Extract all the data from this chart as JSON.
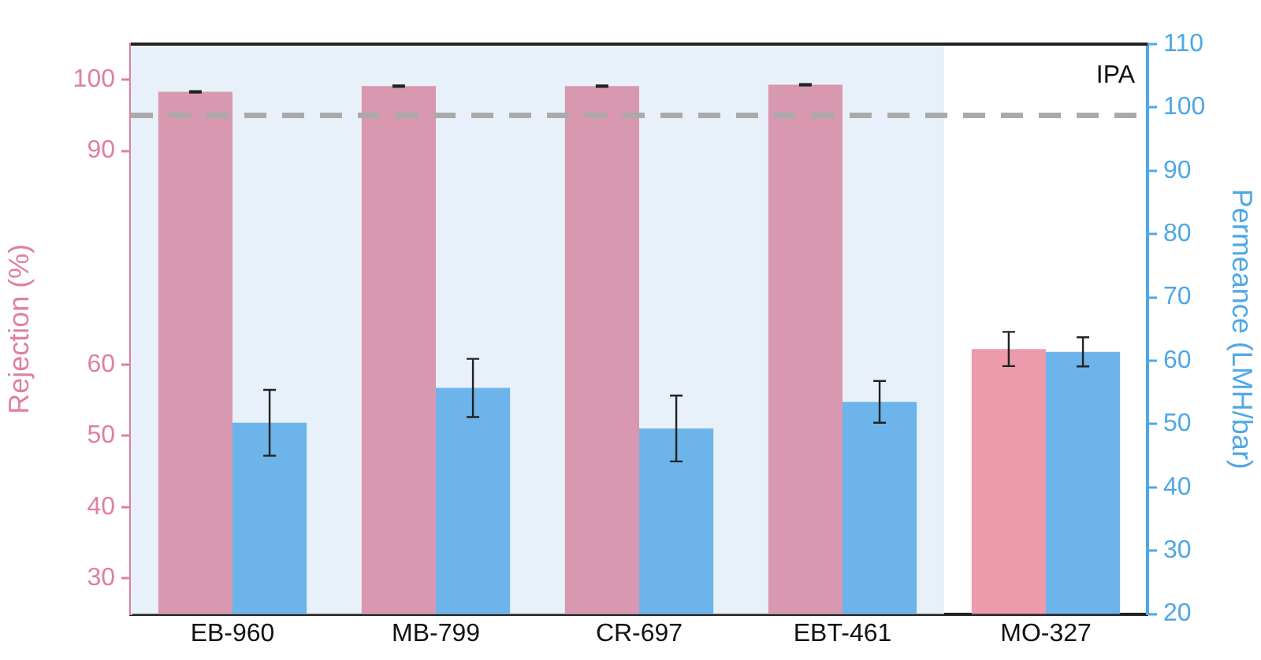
{
  "chart_data": {
    "type": "bar",
    "categories": [
      "EB-960",
      "MB-799",
      "CR-697",
      "EBT-461",
      "MO-327"
    ],
    "ylabel": "Rejection (%)",
    "y2label": "Permeance (LMH/bar)",
    "series": [
      {
        "color": "#e0809f",
        "colors": [
          "#d898b0",
          "#d898b0",
          "#d898b0",
          "#d898b0",
          "#ec9aac"
        ],
        "values": [
          98.3,
          99.1,
          99.1,
          99.3,
          62.2
        ],
        "errors": [
          0.1,
          0.1,
          0.1,
          0.1,
          2.4
        ]
      },
      {
        "color": "#4fa8e6",
        "colors": [
          "#6cb4ea",
          "#6cb4ea",
          "#6cb4ea",
          "#6cb4ea",
          "#6cb4ea"
        ],
        "values": [
          50.2,
          55.7,
          49.3,
          53.5,
          61.4
        ],
        "errors": [
          5.2,
          4.6,
          5.2,
          3.3,
          2.3
        ],
        "axis": "y2"
      }
    ],
    "ylim": [
      25,
      105
    ],
    "yticks": [
      30,
      40,
      50,
      60,
      90,
      100
    ],
    "y2lim": [
      20,
      110
    ],
    "y2ticks": [
      20,
      30,
      40,
      50,
      60,
      70,
      80,
      90,
      100,
      110
    ],
    "ref_lines": [
      {
        "axis": "y",
        "value": 95,
        "color": "#aaaaaa",
        "line_style": "dashed"
      }
    ],
    "bands": [
      {
        "axis": "x",
        "from": "EB-960",
        "to": "EBT-461",
        "color": "#e8f1f9"
      }
    ],
    "annotations": [
      "IPA"
    ],
    "grid": false,
    "legend": false
  }
}
